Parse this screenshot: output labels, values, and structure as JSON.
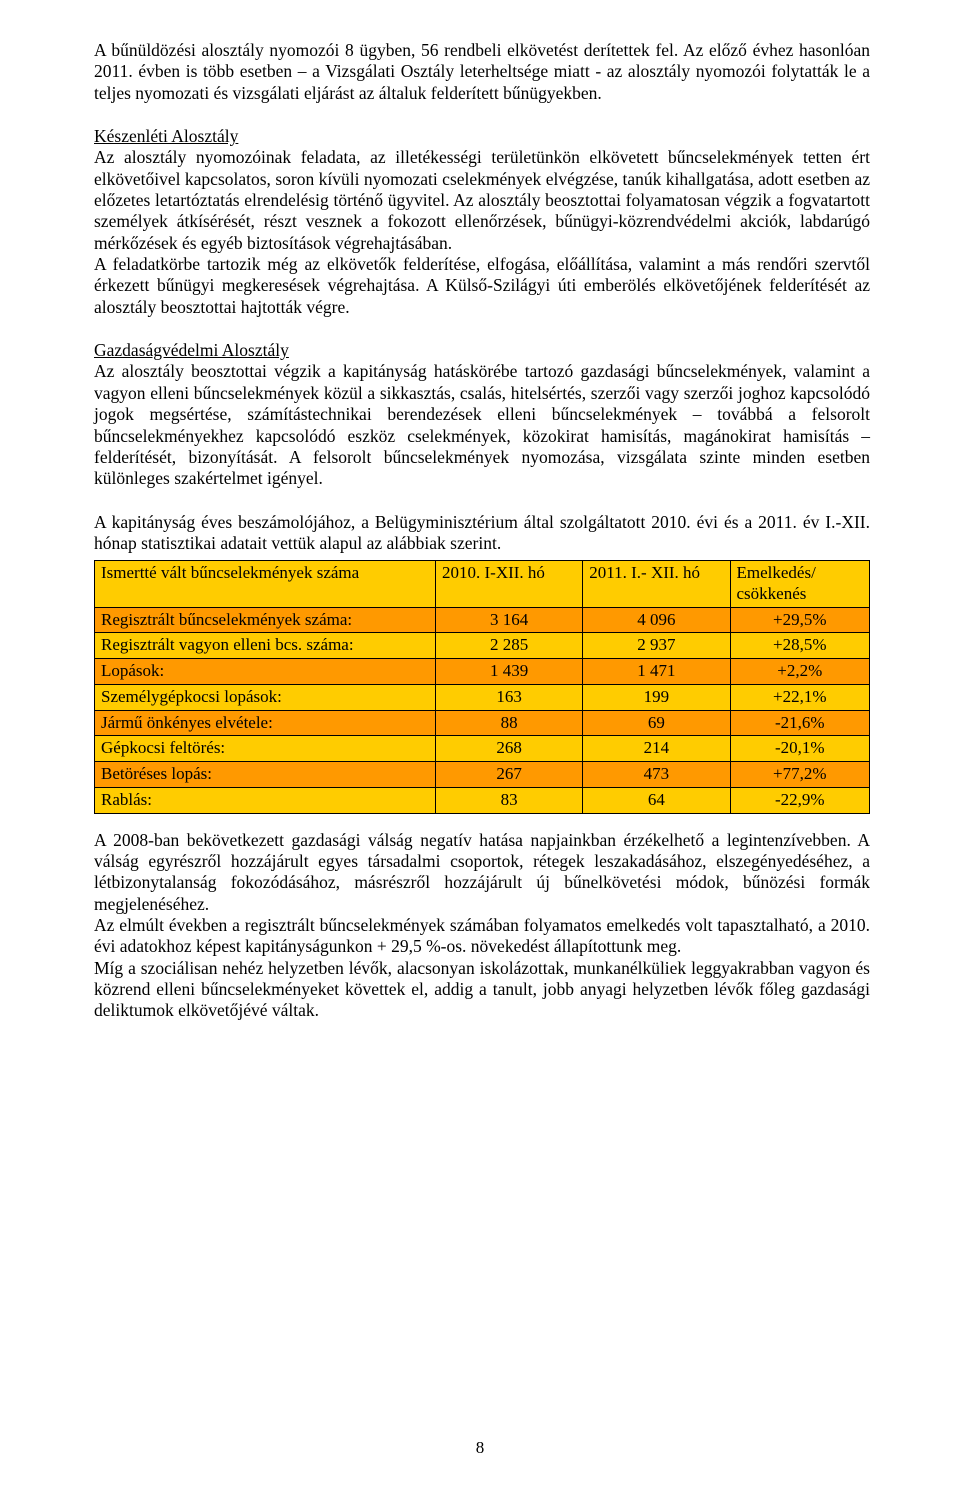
{
  "paragraphs": {
    "p1": "A bűnüldözési alosztály nyomozói 8 ügyben, 56 rendbeli elkövetést derítettek fel. Az előző évhez hasonlóan 2011. évben is több esetben – a Vizsgálati Osztály leterheltsége miatt - az alosztály nyomozói folytatták le a teljes nyomozati és vizsgálati eljárást az általuk felderített bűnügyekben.",
    "h1": "Készenléti Alosztály",
    "p2": "Az alosztály nyomozóinak feladata, az illetékességi területünkön elkövetett bűncselekmények tetten ért elkövetőivel kapcsolatos, soron kívüli nyomozati cselekmények elvégzése, tanúk kihallgatása, adott esetben az előzetes letartóztatás elrendelésig történő ügyvitel. Az alosztály beosztottai folyamatosan végzik a fogvatartott személyek átkísérését, részt vesznek a fokozott ellenőrzések, bűnügyi-közrendvédelmi akciók, labdarúgó mérkőzések és egyéb biztosítások végrehajtásában.",
    "p3": "A feladatkörbe tartozik még az elkövetők felderítése, elfogása, előállítása, valamint a más rendőri szervtől érkezett bűnügyi megkeresések végrehajtása. A Külső-Szilágyi úti emberölés elkövetőjének felderítését az alosztály beosztottai hajtották végre.",
    "h2": "Gazdaságvédelmi Alosztály",
    "p4": "Az alosztály beosztottai végzik a kapitányság hatáskörébe tartozó gazdasági bűncselekmények, valamint a vagyon elleni bűncselekmények közül a sikkasztás, csalás, hitelsértés, szerzői vagy szerzői joghoz kapcsolódó jogok megsértése, számítástechnikai berendezések elleni bűncselekmények – továbbá a felsorolt bűncselekményekhez kapcsolódó eszköz cselekmények, közokirat hamisítás, magánokirat hamisítás – felderítését, bizonyítását. A felsorolt bűncselekmények nyomozása, vizsgálata szinte minden esetben különleges szakértelmet igényel.",
    "p5": "A kapitányság éves beszámolójához, a Belügyminisztérium által szolgáltatott 2010. évi és a 2011. év I.-XII. hónap statisztikai adatait vettük alapul az alábbiak szerint.",
    "p6": "A 2008-ban bekövetkezett gazdasági válság negatív hatása napjainkban érzékelhető a legintenzívebben. A válság egyrészről hozzájárult egyes társadalmi csoportok, rétegek leszakadásához, elszegényedéséhez, a létbizonytalanság fokozódásához, másrészről hozzájárult új bűnelkövetési módok, bűnözési formák megjelenéséhez.",
    "p7": "Az elmúlt években a regisztrált bűncselekmények számában folyamatos emelkedés volt tapasztalható, a 2010. évi adatokhoz képest kapitányságunkon + 29,5 %-os. növekedést állapítottunk meg.",
    "p8": "Míg a szociálisan nehéz helyzetben lévők, alacsonyan iskolázottak, munkanélküliek leggyakrabban vagyon és közrend elleni bűncselekményeket követtek el, addig a tanult, jobb anyagi helyzetben lévők főleg gazdasági deliktumok elkövetőjévé váltak."
  },
  "table": {
    "type": "table",
    "header_bg": "#ffcc00",
    "row_alt_bg_a": "#ffcc00",
    "row_alt_bg_b": "#ff9900",
    "border_color": "#000000",
    "columns": [
      {
        "label": "Ismertté vált bűncselekmények száma",
        "align": "left"
      },
      {
        "label": "2010. I-XII. hó",
        "align": "center"
      },
      {
        "label": "2011. I.- XII. hó",
        "align": "center"
      },
      {
        "label": "Emelkedés/\ncsökkenés",
        "align": "center"
      }
    ],
    "rows": [
      {
        "label": "Regisztrált bűncselekmények száma:",
        "a": "3 164",
        "b": "4 096",
        "c": "+29,5%",
        "bg": "b"
      },
      {
        "label": "Regisztrált vagyon elleni bcs. száma:",
        "a": "2 285",
        "b": "2 937",
        "c": "+28,5%",
        "bg": "a"
      },
      {
        "label": "Lopások:",
        "a": "1 439",
        "b": "1 471",
        "c": "+2,2%",
        "bg": "b"
      },
      {
        "label": "Személygépkocsi lopások:",
        "a": "163",
        "b": "199",
        "c": "+22,1%",
        "bg": "a"
      },
      {
        "label": "Jármű önkényes elvétele:",
        "a": "88",
        "b": "69",
        "c": "-21,6%",
        "bg": "b"
      },
      {
        "label": "Gépkocsi feltörés:",
        "a": "268",
        "b": "214",
        "c": "-20,1%",
        "bg": "a"
      },
      {
        "label": "Betöréses lopás:",
        "a": "267",
        "b": "473",
        "c": "+77,2%",
        "bg": "b"
      },
      {
        "label": "Rablás:",
        "a": "83",
        "b": "64",
        "c": "-22,9%",
        "bg": "a"
      }
    ]
  },
  "page_number": "8"
}
